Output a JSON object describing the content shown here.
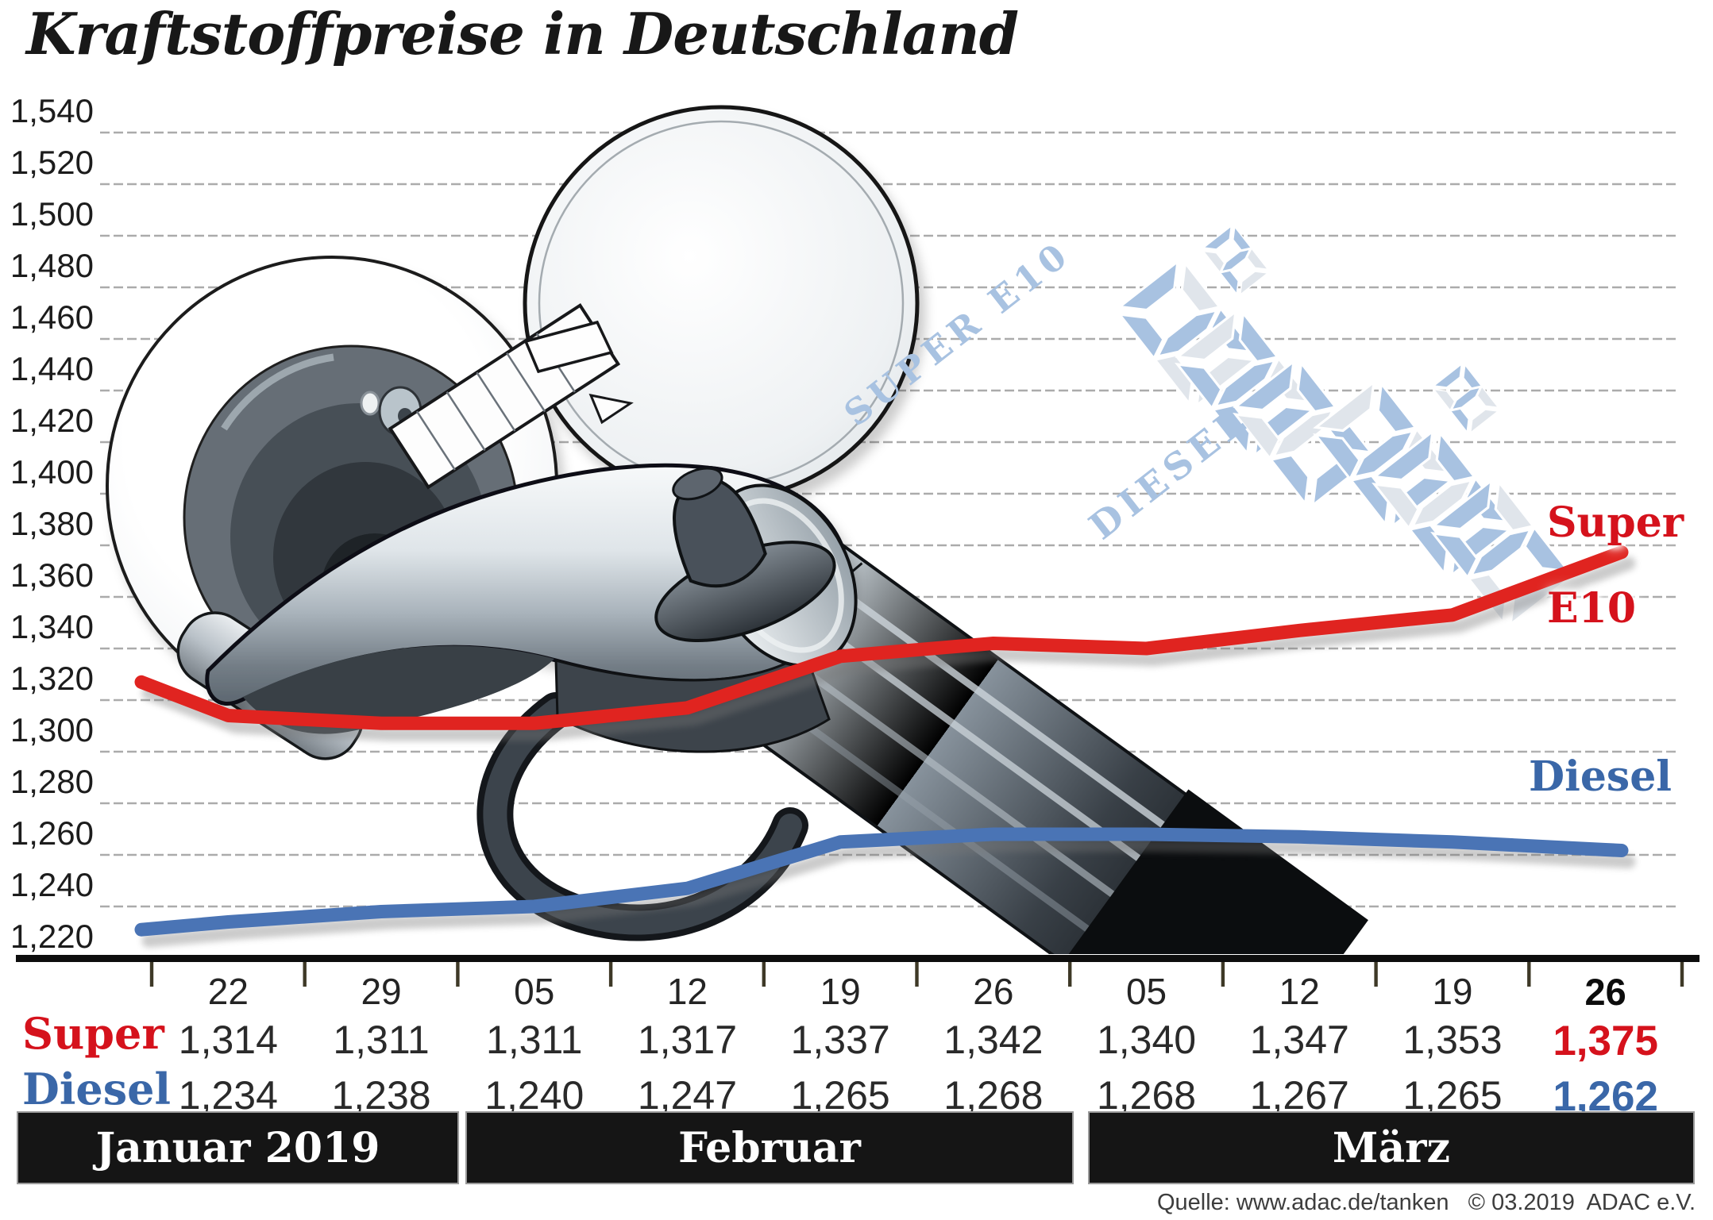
{
  "title": "Kraftstoffpreise in Deutschland",
  "source": "Quelle: www.adac.de/tanken   © 03.2019  ADAC e.V.",
  "colors": {
    "super_line": "#e02420",
    "super_text": "#d5121c",
    "diesel_line": "#4a74b5",
    "diesel_text": "#3a67a8",
    "ghost_blue": "#a8c2e1",
    "ghost_pale": "#e0e5eb",
    "grid": "#ababab",
    "axis": "#0d0d0d",
    "tick": "#3e3927",
    "bar_bg": "#151515",
    "bar_text": "#ffffff",
    "number": "#242424"
  },
  "chart_data": {
    "type": "line",
    "title": "Kraftstoffpreise in Deutschland",
    "x_labels": [
      "22",
      "29",
      "05",
      "12",
      "19",
      "26",
      "05",
      "12",
      "19",
      "26"
    ],
    "months": [
      {
        "label": "Januar 2019",
        "start_col": 0,
        "end_col": 1
      },
      {
        "label": "Februar",
        "start_col": 2,
        "end_col": 5
      },
      {
        "label": "März",
        "start_col": 6,
        "end_col": 9
      }
    ],
    "y_tick_labels": [
      "1,540",
      "1,520",
      "1,500",
      "1,480",
      "1,460",
      "1,440",
      "1,420",
      "1,400",
      "1,380",
      "1,360",
      "1,340",
      "1,320",
      "1,300",
      "1,280",
      "1,260",
      "1,240",
      "1,220"
    ],
    "ylim": [
      1.22,
      1.54
    ],
    "grid": "dashed horizontal",
    "legend_position": "right, beside line ends",
    "series": [
      {
        "name": "Super E10",
        "values": [
          1.314,
          1.311,
          1.311,
          1.317,
          1.337,
          1.342,
          1.34,
          1.347,
          1.353,
          1.375
        ],
        "lead_in_value": 1.327
      },
      {
        "name": "Diesel",
        "values": [
          1.234,
          1.238,
          1.24,
          1.247,
          1.265,
          1.268,
          1.268,
          1.267,
          1.265,
          1.262
        ],
        "lead_in_value": 1.231
      }
    ],
    "legend": {
      "super": [
        "Super",
        "E10"
      ],
      "diesel": [
        "Diesel"
      ]
    }
  },
  "table": {
    "rows": [
      {
        "label": "Super",
        "values": [
          "1,314",
          "1,311",
          "1,311",
          "1,317",
          "1,337",
          "1,342",
          "1,340",
          "1,347",
          "1,353",
          "1,375"
        ]
      },
      {
        "label": "Diesel",
        "values": [
          "1,234",
          "1,238",
          "1,240",
          "1,247",
          "1,265",
          "1,268",
          "1,268",
          "1,267",
          "1,265",
          "1,262"
        ]
      }
    ]
  },
  "ghost_display": {
    "labels": [
      "SUPER E10",
      "DIESEL"
    ]
  }
}
